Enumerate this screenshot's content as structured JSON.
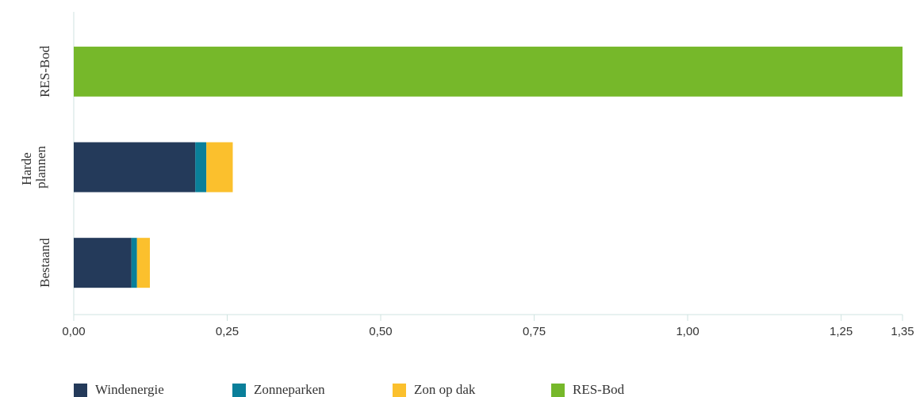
{
  "chart_data": {
    "type": "stacked-bar-horizontal",
    "categories": [
      "RES-Bod",
      "Harde plannen",
      "Bestaand"
    ],
    "series": [
      {
        "name": "Windenergie",
        "color": "#243a5a",
        "values": [
          null,
          0.198,
          0.094
        ]
      },
      {
        "name": "Zonneparken",
        "color": "#0a7f9a",
        "values": [
          null,
          0.018,
          0.009
        ]
      },
      {
        "name": "Zon op dak",
        "color": "#fbc02d",
        "values": [
          null,
          0.043,
          0.021
        ]
      },
      {
        "name": "RES-Bod",
        "color": "#76b82a",
        "values": [
          1.35,
          null,
          null
        ]
      }
    ],
    "xlim": [
      0,
      1.35
    ],
    "xticks": [
      {
        "value": 0,
        "label": "0,00"
      },
      {
        "value": 0.25,
        "label": "0,25"
      },
      {
        "value": 0.5,
        "label": "0,50"
      },
      {
        "value": 0.75,
        "label": "0,75"
      },
      {
        "value": 1,
        "label": "1,00"
      },
      {
        "value": 1.25,
        "label": "1,25"
      },
      {
        "value": 1.35,
        "label": "1,35"
      }
    ],
    "legend": "bottom"
  }
}
